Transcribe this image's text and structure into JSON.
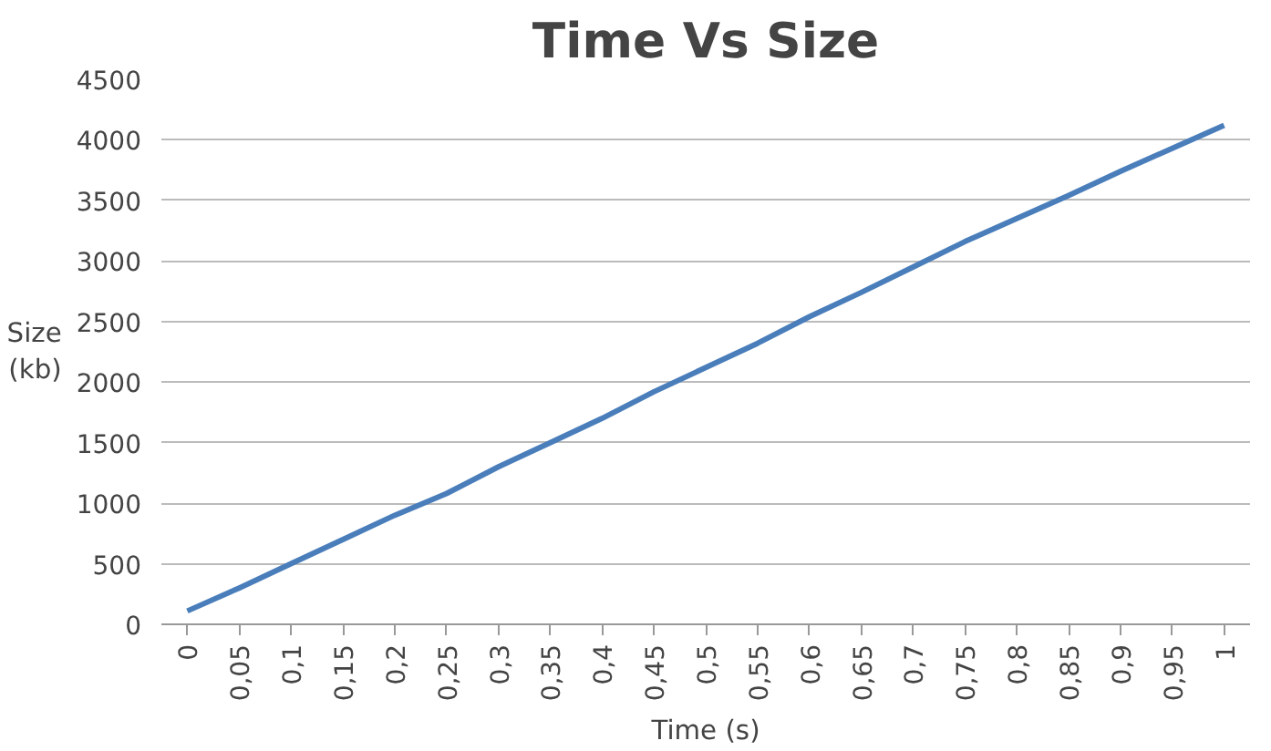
{
  "chart_data": {
    "type": "line",
    "title": "Time Vs Size",
    "xlabel": "Time (s)",
    "ylabel": "Size (kb)",
    "categories": [
      "0",
      "0,05",
      "0,1",
      "0,15",
      "0,2",
      "0,25",
      "0,3",
      "0,35",
      "0,4",
      "0,45",
      "0,5",
      "0,55",
      "0,6",
      "0,65",
      "0,7",
      "0,75",
      "0,8",
      "0,85",
      "0,9",
      "0,95",
      "1"
    ],
    "series": [
      {
        "color": "#4a7ebb",
        "values": [
          110,
          300,
          500,
          700,
          900,
          1080,
          1300,
          1500,
          1700,
          1920,
          2120,
          2320,
          2540,
          2740,
          2950,
          3160,
          3350,
          3540,
          3740,
          3930,
          4120
        ]
      }
    ],
    "ylim": [
      0,
      4500
    ],
    "yticks": [
      0,
      500,
      1000,
      1500,
      2000,
      2500,
      3000,
      3500,
      4000,
      4500
    ],
    "grid": "y",
    "marker": "none",
    "line_style": "solid"
  }
}
